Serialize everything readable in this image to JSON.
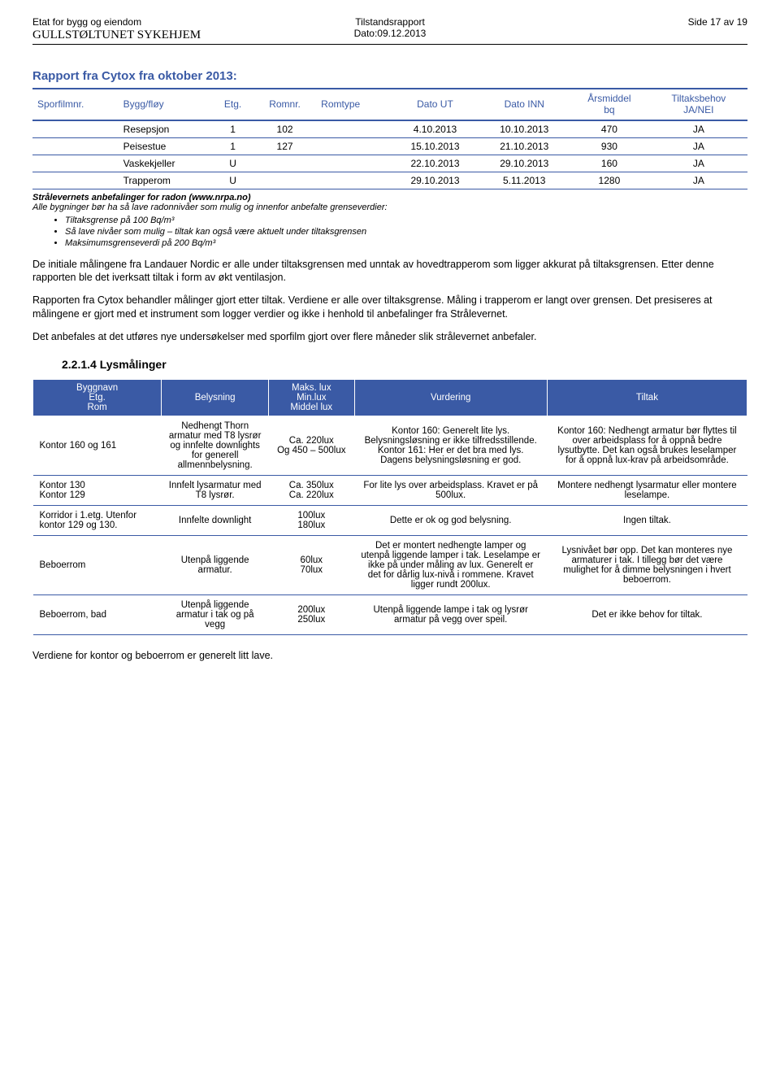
{
  "header": {
    "left_line1": "Etat for bygg og eiendom",
    "left_line2": "GULLSTØLTUNET SYKEHJEM",
    "center_line1": "Tilstandsrapport",
    "center_line2": "Dato:09.12.2013",
    "right_line1": "Side 17 av 19"
  },
  "report_title": "Rapport fra Cytox fra oktober 2013:",
  "radon_table": {
    "headers": {
      "sporfilm": "Sporfilmnr.",
      "bygg": "Bygg/fløy",
      "etg": "Etg.",
      "romnr": "Romnr.",
      "romtype": "Romtype",
      "dato_ut": "Dato UT",
      "dato_inn": "Dato INN",
      "arsmiddel1": "Årsmiddel",
      "arsmiddel2": "bq",
      "tiltak1": "Tiltaksbehov",
      "tiltak2": "JA/NEI"
    },
    "rows": [
      {
        "sporfilm": "",
        "bygg": "Resepsjon",
        "etg": "1",
        "romnr": "102",
        "romtype": "",
        "dato_ut": "4.10.2013",
        "dato_inn": "10.10.2013",
        "arsmiddel": "470",
        "tiltak": "JA"
      },
      {
        "sporfilm": "",
        "bygg": "Peisestue",
        "etg": "1",
        "romnr": "127",
        "romtype": "",
        "dato_ut": "15.10.2013",
        "dato_inn": "21.10.2013",
        "arsmiddel": "930",
        "tiltak": "JA"
      },
      {
        "sporfilm": "",
        "bygg": "Vaskekjeller",
        "etg": "U",
        "romnr": "",
        "romtype": "",
        "dato_ut": "22.10.2013",
        "dato_inn": "29.10.2013",
        "arsmiddel": "160",
        "tiltak": "JA"
      },
      {
        "sporfilm": "",
        "bygg": "Trapperom",
        "etg": "U",
        "romnr": "",
        "romtype": "",
        "dato_ut": "29.10.2013",
        "dato_inn": "5.11.2013",
        "arsmiddel": "1280",
        "tiltak": "JA"
      }
    ]
  },
  "notes": {
    "heading": "Strålevernets anbefalinger for radon (www.nrpa.no)",
    "intro": "Alle bygninger bør ha så lave radonnivåer som mulig og innenfor anbefalte grenseverdier:",
    "b1": "Tiltaksgrense på 100 Bq/m³",
    "b2": "Så lave nivåer som mulig – tiltak kan også være aktuelt under tiltaksgrensen",
    "b3": "Maksimumsgrenseverdi på 200 Bq/m³"
  },
  "paras": {
    "p1": "De initiale målingene fra Landauer Nordic er alle under tiltaksgrensen med unntak av hovedtrapperom som ligger akkurat på tiltaksgrensen. Etter denne rapporten ble det iverksatt tiltak i form av økt ventilasjon.",
    "p2": "Rapporten fra Cytox behandler målinger gjort etter tiltak. Verdiene er alle over tiltaksgrense. Måling i trapperom er langt over grensen. Det presiseres at målingene er gjort med et instrument som logger verdier og ikke i henhold til anbefalinger fra Strålevernet.",
    "p3": "Det anbefales at det utføres nye undersøkelser med sporfilm gjort over flere måneder slik strålevernet anbefaler."
  },
  "subsection_title": "2.2.1.4 Lysmålinger",
  "lys_table": {
    "headers": {
      "room1": "Byggnavn",
      "room2": "Etg.",
      "room3": "Rom",
      "belysning": "Belysning",
      "lux1": "Maks. lux",
      "lux2": "Min.lux",
      "lux3": "Middel lux",
      "vurdering": "Vurdering",
      "tiltak": "Tiltak"
    },
    "rows": [
      {
        "room": "Kontor 160 og 161",
        "belysning": "Nedhengt Thorn armatur med T8 lysrør og innfelte downlights for generell allmennbelysning.",
        "lux": "Ca. 220lux\nOg 450 – 500lux",
        "vurdering": "Kontor 160: Generelt lite lys. Belysningsløsning er ikke tilfredsstillende. Kontor 161: Her er det bra med lys. Dagens belysningsløsning er god.",
        "tiltak": "Kontor 160: Nedhengt armatur bør flyttes til over arbeidsplass for å oppnå bedre lysutbytte. Det kan også brukes leselamper for å oppnå lux-krav på arbeidsområde."
      },
      {
        "room": "Kontor 130\nKontor 129",
        "belysning": "Innfelt lysarmatur med T8 lysrør.",
        "lux": "Ca. 350lux\nCa. 220lux",
        "vurdering": "For lite lys over arbeidsplass. Kravet er på 500lux.",
        "tiltak": "Montere nedhengt lysarmatur eller montere leselampe."
      },
      {
        "room": "Korridor i 1.etg. Utenfor kontor 129 og 130.",
        "belysning": "Innfelte downlight",
        "lux": "100lux\n180lux",
        "vurdering": "Dette er ok og god belysning.",
        "tiltak": "Ingen tiltak."
      },
      {
        "room": "Beboerrom",
        "belysning": "Utenpå liggende armatur.",
        "lux": "60lux\n70lux",
        "vurdering": "Det er montert nedhengte lamper og utenpå liggende lamper i tak. Leselampe er ikke på under måling av lux. Generelt er det for dårlig lux-nivå i rommene. Kravet ligger rundt 200lux.",
        "tiltak": "Lysnivået bør opp. Det kan monteres nye armaturer i tak. I tillegg bør det være mulighet for å dimme belysningen i hvert beboerrom."
      },
      {
        "room": "Beboerrom, bad",
        "belysning": "Utenpå liggende armatur i tak og på vegg",
        "lux": "200lux\n250lux",
        "vurdering": "Utenpå liggende lampe i tak og lysrør armatur på vegg over speil.",
        "tiltak": "Det er ikke behov for tiltak."
      }
    ]
  },
  "footer_para": "Verdiene for kontor og beboerrom er generelt litt lave."
}
